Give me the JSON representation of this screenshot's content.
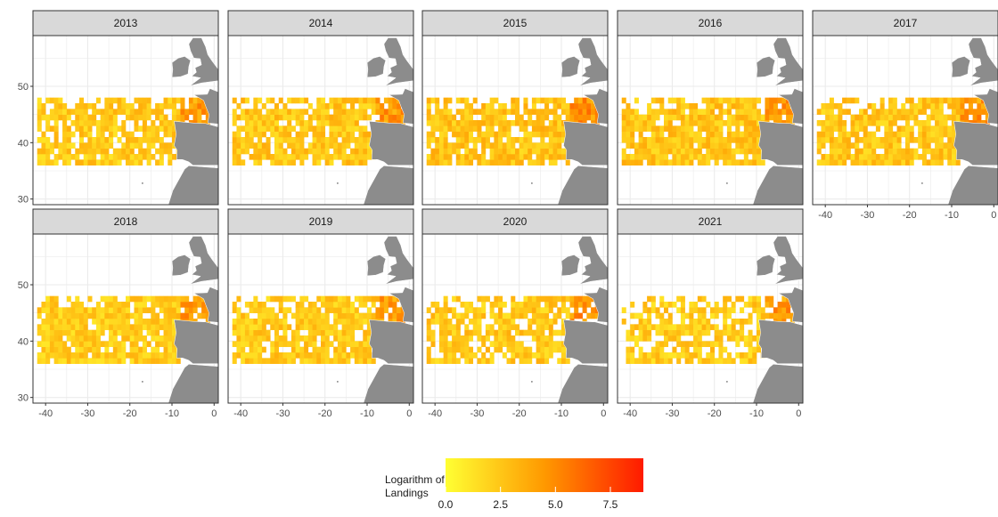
{
  "chart_data": {
    "type": "heatmap",
    "title": "",
    "xlabel": "",
    "ylabel": "",
    "xlim": [
      -43,
      1
    ],
    "ylim": [
      29,
      59
    ],
    "x_ticks": [
      -40,
      -30,
      -20,
      -10,
      0
    ],
    "y_ticks": [
      30,
      40,
      50
    ],
    "facets": [
      "2013",
      "2014",
      "2015",
      "2016",
      "2017",
      "2018",
      "2019",
      "2020",
      "2021"
    ],
    "grid": true,
    "cell_size_deg": 1,
    "value_range": [
      0,
      9
    ],
    "legend": {
      "title_line1": "Logarithm of",
      "title_line2": "Landings",
      "ticks": [
        "0.0",
        "2.5",
        "5.0",
        "7.5"
      ],
      "tick_values": [
        0,
        2.5,
        5,
        7.5
      ],
      "low_color": "#ffff33",
      "mid_color": "#ff9900",
      "high_color": "#ff1a00",
      "position": "bottom"
    },
    "coverage": {
      "lon_range": [
        -42,
        -1
      ],
      "lat_range": [
        36,
        48
      ],
      "note_values": "Per-facet grid of landings, mostly 1-5, higher near the Bay of Biscay"
    },
    "panel_background": "#ffffff",
    "strip_fill": "#d9d9d9",
    "land_color": "#8c8c8c",
    "grid_color": "#ebebeb"
  }
}
